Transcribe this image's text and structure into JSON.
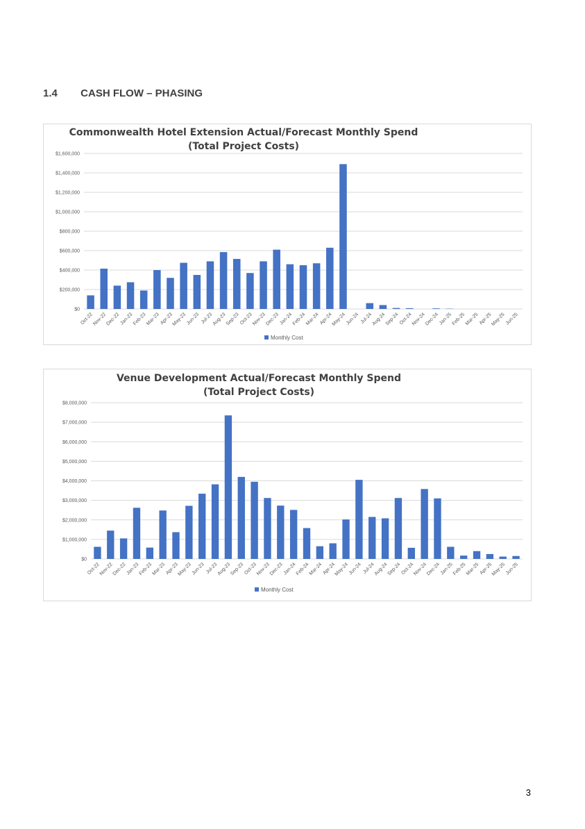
{
  "section": {
    "number": "1.4",
    "title": "CASH FLOW – PHASING"
  },
  "page_number": "3",
  "colors": {
    "bar": "#4472C4",
    "grid": "#d9d9d9",
    "axis_text": "#595959",
    "title_text": "#404040"
  },
  "chart_data": [
    {
      "type": "bar",
      "title": "Commonwealth Hotel Extension Actual/Forecast Monthly Spend",
      "subtitle": "(Total Project Costs)",
      "categories": [
        "Oct-22",
        "Nov-22",
        "Dec-22",
        "Jan-23",
        "Feb-23",
        "Mar-23",
        "Apr-23",
        "May-23",
        "Jun-23",
        "Jul-23",
        "Aug-23",
        "Sep-23",
        "Oct-23",
        "Nov-23",
        "Dec-23",
        "Jan-24",
        "Feb-24",
        "Mar-24",
        "Apr-24",
        "May-24",
        "Jun-24",
        "Jul-24",
        "Aug-24",
        "Sep-24",
        "Oct-24",
        "Nov-24",
        "Dec-24",
        "Jan-25",
        "Feb-25",
        "Mar-25",
        "Apr-25",
        "May-25",
        "Jun-25"
      ],
      "series": [
        {
          "name": "Monthly Cost",
          "values": [
            140000,
            415000,
            240000,
            275000,
            190000,
            400000,
            320000,
            475000,
            350000,
            490000,
            585000,
            515000,
            370000,
            490000,
            610000,
            460000,
            450000,
            470000,
            630000,
            1490000,
            0,
            60000,
            40000,
            10000,
            8000,
            0,
            6000,
            3000,
            0,
            0,
            0,
            0,
            0
          ]
        }
      ],
      "yticks": [
        "$0",
        "$200,000",
        "$400,000",
        "$600,000",
        "$800,000",
        "$1,000,000",
        "$1,200,000",
        "$1,400,000",
        "$1,600,000"
      ],
      "ylim": [
        0,
        1600000
      ],
      "legend": "bottom",
      "grid": true
    },
    {
      "type": "bar",
      "title": "Venue Development Actual/Forecast Monthly Spend",
      "subtitle": "(Total Project Costs)",
      "categories": [
        "Oct-22",
        "Nov-22",
        "Dec-22",
        "Jan-23",
        "Feb-23",
        "Mar-23",
        "Apr-23",
        "May-23",
        "Jun-23",
        "Jul-23",
        "Aug-23",
        "Sep-23",
        "Oct-23",
        "Nov-23",
        "Dec-23",
        "Jan-24",
        "Feb-24",
        "Mar-24",
        "Apr-24",
        "May-24",
        "Jun-24",
        "Jul-24",
        "Aug-24",
        "Sep-24",
        "Oct-24",
        "Nov-24",
        "Dec-24",
        "Jan-25",
        "Feb-25",
        "Mar-25",
        "Apr-25",
        "May-25",
        "Jun-25"
      ],
      "series": [
        {
          "name": "Monthly Cost",
          "values": [
            620000,
            1450000,
            1050000,
            2620000,
            580000,
            2480000,
            1370000,
            2720000,
            3340000,
            3820000,
            7350000,
            4200000,
            3950000,
            3120000,
            2730000,
            2510000,
            1580000,
            650000,
            800000,
            2020000,
            4050000,
            2150000,
            2080000,
            3120000,
            570000,
            3580000,
            3100000,
            620000,
            170000,
            400000,
            250000,
            120000,
            150000
          ]
        }
      ],
      "yticks": [
        "$0",
        "$1,000,000",
        "$2,000,000",
        "$3,000,000",
        "$4,000,000",
        "$5,000,000",
        "$6,000,000",
        "$7,000,000",
        "$8,000,000"
      ],
      "ylim": [
        0,
        8000000
      ],
      "legend": "bottom",
      "grid": true
    }
  ]
}
